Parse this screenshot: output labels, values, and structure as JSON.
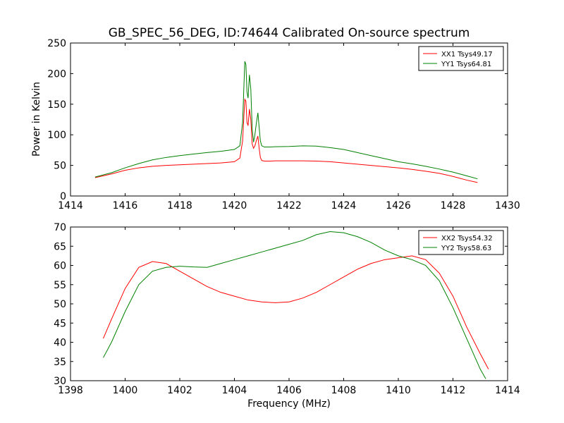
{
  "chart_data": [
    {
      "type": "line",
      "title": "GB_SPEC_56_DEG, ID:74644 Calibrated On-source spectrum",
      "xlabel": "",
      "ylabel": "Power in Kelvin",
      "xlim": [
        1414,
        1430
      ],
      "ylim": [
        0,
        250
      ],
      "xticks": [
        "1414",
        "1416",
        "1418",
        "1420",
        "1422",
        "1424",
        "1426",
        "1428",
        "1430"
      ],
      "yticks": [
        "0",
        "50",
        "100",
        "150",
        "200",
        "250"
      ],
      "grid": false,
      "legend": "top-right",
      "series": [
        {
          "name": "XX1 Tsys49.17",
          "color": "#ff0000",
          "x": [
            1414.9,
            1415.5,
            1416.0,
            1416.5,
            1417.0,
            1417.5,
            1418.0,
            1418.5,
            1419.0,
            1419.5,
            1420.0,
            1420.2,
            1420.3,
            1420.38,
            1420.42,
            1420.46,
            1420.5,
            1420.55,
            1420.6,
            1420.65,
            1420.7,
            1420.75,
            1420.8,
            1420.86,
            1420.9,
            1420.95,
            1421.0,
            1421.1,
            1421.3,
            1421.5,
            1422.0,
            1422.5,
            1423.0,
            1423.5,
            1424.0,
            1424.5,
            1425.0,
            1425.5,
            1426.0,
            1426.5,
            1427.0,
            1427.5,
            1428.0,
            1428.5,
            1428.9
          ],
          "y": [
            30,
            36,
            42,
            46,
            48.5,
            50,
            51,
            52,
            53,
            54,
            56,
            62,
            90,
            158,
            155,
            120,
            115,
            142,
            125,
            85,
            78,
            82,
            90,
            98,
            80,
            63,
            58,
            57,
            57,
            57.5,
            57.5,
            57.5,
            57,
            56,
            54,
            52,
            50,
            48,
            46,
            43.5,
            40.5,
            37,
            32,
            26,
            22
          ]
        },
        {
          "name": "YY1 Tsys64.81",
          "color": "#008000",
          "x": [
            1414.9,
            1415.5,
            1416.0,
            1416.5,
            1417.0,
            1417.5,
            1418.0,
            1418.5,
            1419.0,
            1419.5,
            1420.0,
            1420.2,
            1420.3,
            1420.38,
            1420.42,
            1420.46,
            1420.5,
            1420.55,
            1420.6,
            1420.65,
            1420.7,
            1420.75,
            1420.8,
            1420.86,
            1420.9,
            1420.95,
            1421.0,
            1421.1,
            1421.3,
            1421.5,
            1422.0,
            1422.5,
            1423.0,
            1423.5,
            1424.0,
            1424.5,
            1425.0,
            1425.5,
            1426.0,
            1426.5,
            1427.0,
            1427.5,
            1428.0,
            1428.5,
            1428.9
          ],
          "y": [
            31,
            38,
            46,
            53,
            59,
            63,
            66,
            68.5,
            71,
            73,
            76,
            82,
            120,
            220,
            215,
            170,
            160,
            198,
            175,
            110,
            88,
            100,
            118,
            136,
            115,
            90,
            82,
            80,
            80,
            80.5,
            81,
            82,
            81.5,
            79,
            76,
            71,
            66,
            61,
            56,
            52.5,
            48.5,
            44,
            39,
            33,
            28
          ]
        }
      ]
    },
    {
      "type": "line",
      "title": "",
      "xlabel": "Frequency (MHz)",
      "ylabel": "",
      "xlim": [
        1398,
        1414
      ],
      "ylim": [
        30,
        70
      ],
      "xticks": [
        "1398",
        "1400",
        "1402",
        "1404",
        "1406",
        "1408",
        "1410",
        "1412",
        "1414"
      ],
      "yticks": [
        "30",
        "35",
        "40",
        "45",
        "50",
        "55",
        "60",
        "65",
        "70"
      ],
      "grid": false,
      "legend": "top-right",
      "series": [
        {
          "name": "XX2 Tsys54.32",
          "color": "#ff0000",
          "x": [
            1399.2,
            1399.5,
            1400.0,
            1400.5,
            1401.0,
            1401.5,
            1402.0,
            1402.5,
            1403.0,
            1403.5,
            1404.0,
            1404.5,
            1405.0,
            1405.5,
            1406.0,
            1406.5,
            1407.0,
            1407.5,
            1408.0,
            1408.5,
            1409.0,
            1409.5,
            1410.0,
            1410.5,
            1411.0,
            1411.5,
            1412.0,
            1412.5,
            1413.0,
            1413.3
          ],
          "y": [
            41,
            46,
            54,
            59.5,
            61,
            60.5,
            58.5,
            56.5,
            54.5,
            53,
            52,
            51,
            50.5,
            50.3,
            50.5,
            51.5,
            53,
            55,
            57,
            59,
            60.5,
            61.5,
            62,
            62.5,
            61.5,
            58,
            52,
            44,
            37,
            33
          ]
        },
        {
          "name": "YY2 Tsys58.63",
          "color": "#008000",
          "x": [
            1399.2,
            1399.5,
            1400.0,
            1400.5,
            1401.0,
            1401.5,
            1402.0,
            1402.5,
            1403.0,
            1403.5,
            1404.0,
            1404.5,
            1405.0,
            1405.5,
            1406.0,
            1406.5,
            1407.0,
            1407.5,
            1408.0,
            1408.5,
            1409.0,
            1409.5,
            1410.0,
            1410.5,
            1411.0,
            1411.5,
            1412.0,
            1412.5,
            1413.0,
            1413.2
          ],
          "y": [
            36,
            40,
            48,
            55,
            58.5,
            59.5,
            59.8,
            59.6,
            59.5,
            60.5,
            61.5,
            62.5,
            63.5,
            64.5,
            65.5,
            66.5,
            68,
            68.8,
            68.5,
            67.5,
            66,
            64,
            62.5,
            61.5,
            60,
            56,
            49,
            41,
            33,
            30.5
          ]
        }
      ]
    }
  ]
}
